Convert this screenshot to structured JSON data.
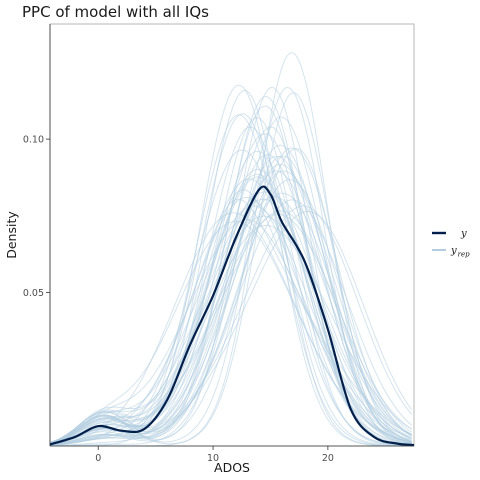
{
  "chart_data": {
    "type": "line",
    "title": "PPC of model with all IQs",
    "xlabel": "ADOS",
    "ylabel": "Density",
    "xlim": [
      -4.2,
      27.5
    ],
    "ylim": [
      0,
      0.1375
    ],
    "x_ticks": [
      0,
      10,
      20
    ],
    "x_tick_labels": [
      "0",
      "10",
      "20"
    ],
    "y_ticks": [
      0.05,
      0.1
    ],
    "y_tick_labels": [
      "0.05",
      "0.10"
    ],
    "grid": false,
    "legend_position": "right",
    "series": [
      {
        "name": "y",
        "color": "#011f4b",
        "x": [
          -4.2,
          -2,
          0,
          2,
          4,
          6,
          8,
          10,
          12,
          14,
          15,
          16,
          18,
          20,
          22,
          24,
          26,
          27.5
        ],
        "y": [
          0.0005,
          0.003,
          0.0065,
          0.005,
          0.0055,
          0.015,
          0.033,
          0.049,
          0.068,
          0.0835,
          0.082,
          0.073,
          0.06,
          0.038,
          0.012,
          0.003,
          0.0008,
          0.0003
        ]
      },
      {
        "name": "y rep",
        "color": "#b3cde0",
        "note_draws": 50,
        "representative_peak_range": [
          0.06,
          0.135
        ],
        "representative_mode_range": [
          12,
          17
        ]
      }
    ],
    "legend": [
      {
        "label": "y",
        "sub": "",
        "color": "#011f4b"
      },
      {
        "label": "y",
        "sub": "rep",
        "color": "#b3cde0"
      }
    ]
  }
}
